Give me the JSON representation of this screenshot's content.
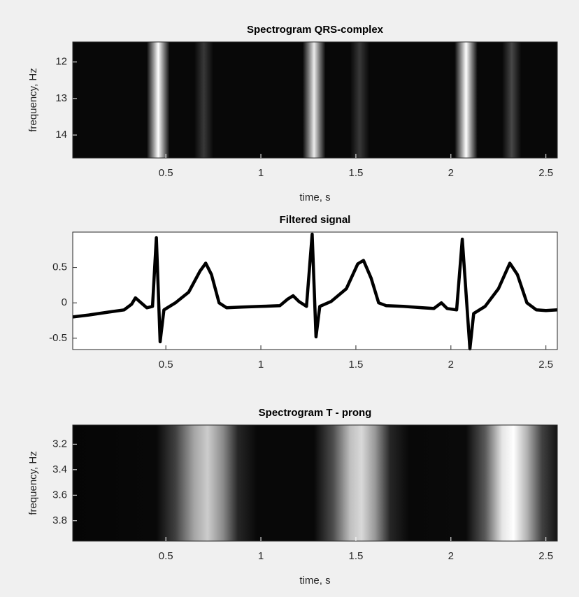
{
  "chart_data": [
    {
      "type": "heatmap",
      "title": "Spectrogram QRS-complex",
      "x_label": "time, s",
      "y_label": "frequency, Hz",
      "colormap": "gray",
      "x": [
        0.01,
        0.4,
        0.43,
        0.46,
        0.49,
        0.52,
        0.65,
        0.7,
        0.75,
        1.22,
        1.25,
        1.28,
        1.31,
        1.34,
        1.47,
        1.52,
        1.57,
        2.02,
        2.05,
        2.08,
        2.11,
        2.14,
        2.27,
        2.32,
        2.37,
        2.56
      ],
      "values": [
        0.03,
        0.03,
        0.5,
        1.0,
        0.5,
        0.03,
        0.03,
        0.22,
        0.03,
        0.03,
        0.45,
        0.92,
        0.45,
        0.03,
        0.03,
        0.22,
        0.03,
        0.03,
        0.5,
        1.0,
        0.5,
        0.03,
        0.03,
        0.28,
        0.03,
        0.03
      ],
      "xlim": [
        0.01,
        2.56
      ],
      "xticks": [
        0.5,
        1,
        1.5,
        2,
        2.5
      ],
      "ylim": [
        11.45,
        14.63
      ],
      "yticks": [
        12,
        13,
        14
      ],
      "y_reversed": true
    },
    {
      "type": "line",
      "title": "Filtered signal",
      "color": "#000000",
      "x": [
        0.01,
        0.1,
        0.2,
        0.28,
        0.32,
        0.34,
        0.37,
        0.4,
        0.43,
        0.45,
        0.47,
        0.49,
        0.55,
        0.62,
        0.68,
        0.71,
        0.74,
        0.78,
        0.82,
        0.9,
        1.0,
        1.1,
        1.14,
        1.17,
        1.2,
        1.24,
        1.27,
        1.29,
        1.31,
        1.37,
        1.45,
        1.51,
        1.54,
        1.58,
        1.62,
        1.66,
        1.75,
        1.85,
        1.91,
        1.95,
        1.98,
        2.03,
        2.06,
        2.1,
        2.12,
        2.18,
        2.25,
        2.31,
        2.35,
        2.4,
        2.45,
        2.5,
        2.56
      ],
      "values": [
        -0.2,
        -0.17,
        -0.13,
        -0.1,
        -0.02,
        0.07,
        0,
        -0.07,
        -0.05,
        0.92,
        -0.55,
        -0.1,
        0.0,
        0.15,
        0.45,
        0.56,
        0.4,
        0.0,
        -0.07,
        -0.06,
        -0.05,
        -0.04,
        0.05,
        0.1,
        0.02,
        -0.05,
        0.97,
        -0.48,
        -0.05,
        0.02,
        0.2,
        0.55,
        0.6,
        0.35,
        0.0,
        -0.04,
        -0.05,
        -0.07,
        -0.08,
        0.0,
        -0.08,
        -0.1,
        0.9,
        -0.65,
        -0.15,
        -0.05,
        0.2,
        0.56,
        0.4,
        0.0,
        -0.1,
        -0.11,
        -0.1
      ],
      "xlim": [
        0.01,
        2.56
      ],
      "xticks": [
        0.5,
        1,
        1.5,
        2,
        2.5
      ],
      "ylim": [
        -0.66,
        1.0
      ],
      "yticks": [
        -0.5,
        0,
        0.5
      ]
    },
    {
      "type": "heatmap",
      "title": "Spectrogram T - prong",
      "x_label": "time, s",
      "y_label": "frequency, Hz",
      "colormap": "gray",
      "x": [
        0.01,
        0.45,
        0.55,
        0.65,
        0.72,
        0.8,
        0.88,
        0.98,
        1.28,
        1.38,
        1.47,
        1.53,
        1.6,
        1.68,
        1.78,
        2.08,
        2.18,
        2.27,
        2.33,
        2.4,
        2.48,
        2.56
      ],
      "values": [
        0.02,
        0.03,
        0.25,
        0.65,
        0.8,
        0.55,
        0.15,
        0.03,
        0.03,
        0.3,
        0.75,
        0.85,
        0.6,
        0.15,
        0.03,
        0.04,
        0.35,
        0.9,
        1.0,
        0.7,
        0.25,
        0.08
      ],
      "xlim": [
        0.01,
        2.56
      ],
      "xticks": [
        0.5,
        1,
        1.5,
        2,
        2.5
      ],
      "ylim": [
        3.05,
        3.96
      ],
      "yticks": [
        3.2,
        3.4,
        3.6,
        3.8
      ],
      "y_reversed": true
    }
  ]
}
